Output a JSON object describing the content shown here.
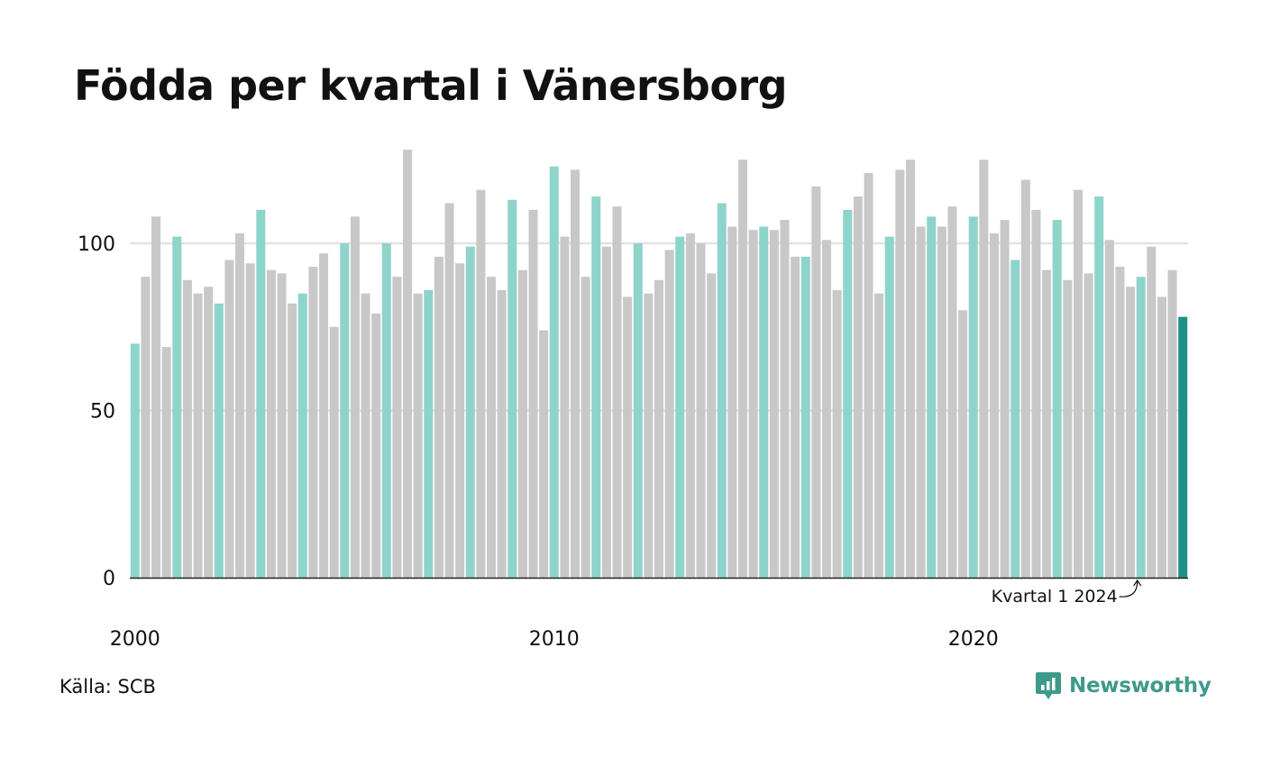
{
  "title": "Födda per kvartal i Vänersborg",
  "source": "Källa: SCB",
  "brand": "Newsworthy",
  "colors": {
    "q1": "#8dd4cb",
    "other": "#c8c8c8",
    "latest": "#1f9087",
    "brand": "#3d9a8b"
  },
  "chart_data": {
    "type": "bar",
    "title": "Födda per kvartal i Vänersborg",
    "xlabel": "",
    "ylabel": "",
    "ylim": [
      0,
      130
    ],
    "yticks": [
      0,
      50,
      100
    ],
    "xtick_labels": [
      {
        "label": "2000",
        "index": 0
      },
      {
        "label": "2010",
        "index": 40
      },
      {
        "label": "2020",
        "index": 80
      }
    ],
    "grid": true,
    "start_year": 2000,
    "values": [
      70,
      90,
      108,
      69,
      102,
      89,
      85,
      87,
      82,
      95,
      103,
      94,
      110,
      92,
      91,
      82,
      85,
      93,
      97,
      75,
      100,
      108,
      85,
      79,
      100,
      90,
      128,
      85,
      86,
      96,
      112,
      94,
      99,
      116,
      90,
      86,
      113,
      92,
      110,
      74,
      123,
      102,
      122,
      90,
      114,
      99,
      111,
      84,
      100,
      85,
      89,
      98,
      102,
      103,
      100,
      91,
      112,
      105,
      125,
      104,
      105,
      104,
      107,
      96,
      96,
      117,
      101,
      86,
      110,
      114,
      121,
      85,
      102,
      122,
      125,
      105,
      108,
      105,
      111,
      80,
      108,
      125,
      103,
      107,
      95,
      119,
      110,
      92,
      107,
      89,
      116,
      91,
      114,
      101,
      93,
      87,
      90,
      99,
      84,
      92,
      78
    ],
    "annotation": {
      "label": "Kvartal 1 2024",
      "index": 96
    }
  }
}
